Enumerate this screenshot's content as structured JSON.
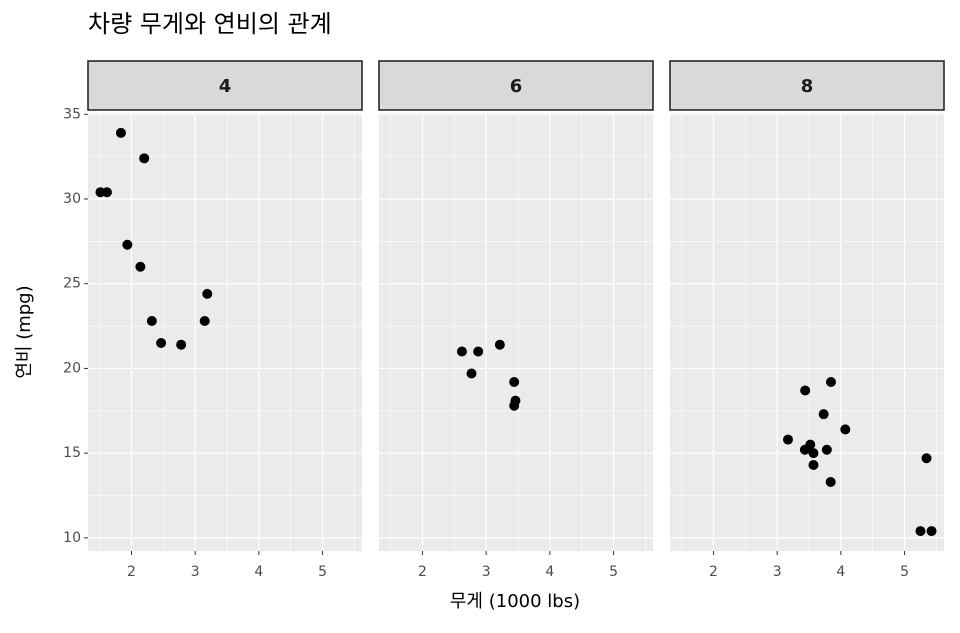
{
  "title": "차량 무게와 연비의 관계",
  "x_label": "무게 (1000 lbs)",
  "y_label": "연비 (mpg)",
  "chart_data": [
    {
      "type": "scatter",
      "title": "4",
      "color": "#000000",
      "grid": true,
      "x": [
        2.32,
        3.19,
        3.15,
        2.2,
        1.615,
        1.835,
        2.465,
        1.935,
        2.14,
        1.513,
        2.78
      ],
      "values": [
        22.8,
        24.4,
        22.8,
        32.4,
        30.4,
        33.9,
        21.5,
        27.3,
        26.0,
        30.4,
        21.4
      ],
      "xlim": [
        1.3175,
        5.6195
      ],
      "ylim": [
        9.225,
        35.075
      ],
      "xticks": [
        2,
        3,
        4,
        5
      ],
      "yticks": [
        10,
        15,
        20,
        25,
        30,
        35
      ]
    },
    {
      "type": "scatter",
      "title": "6",
      "color": "#000000",
      "grid": true,
      "x": [
        2.62,
        2.875,
        3.215,
        3.46,
        3.44,
        3.44,
        2.77
      ],
      "values": [
        21.0,
        21.0,
        21.4,
        18.1,
        19.2,
        17.8,
        19.7
      ],
      "xlim": [
        1.3175,
        5.6195
      ],
      "ylim": [
        9.225,
        35.075
      ],
      "xticks": [
        2,
        3,
        4,
        5
      ],
      "yticks": [
        10,
        15,
        20,
        25,
        30,
        35
      ]
    },
    {
      "type": "scatter",
      "title": "8",
      "color": "#000000",
      "grid": true,
      "x": [
        3.44,
        3.57,
        4.07,
        3.73,
        3.78,
        5.25,
        5.424,
        5.345,
        3.52,
        3.435,
        3.84,
        3.845,
        3.17,
        3.57
      ],
      "values": [
        18.7,
        14.3,
        16.4,
        17.3,
        15.2,
        10.4,
        10.4,
        14.7,
        15.5,
        15.2,
        13.3,
        19.2,
        15.8,
        15.0
      ],
      "xlim": [
        1.3175,
        5.6195
      ],
      "ylim": [
        9.225,
        35.075
      ],
      "xticks": [
        2,
        3,
        4,
        5
      ],
      "yticks": [
        10,
        15,
        20,
        25,
        30,
        35
      ]
    }
  ]
}
